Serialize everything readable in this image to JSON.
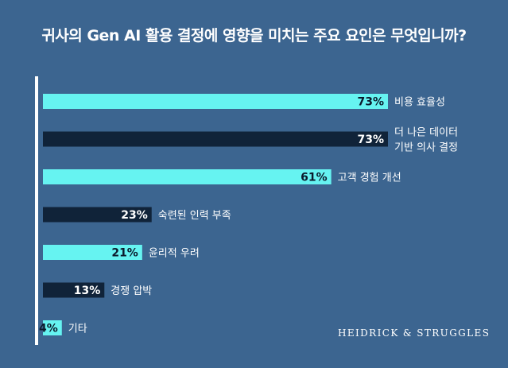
{
  "title": "귀사의 Gen AI 활용 결정에 영향을 미치는 주요 요인은 무엇입니까?",
  "brand": "HEIDRICK & STRUGGLES",
  "colors": {
    "background": "#3c6590",
    "light_bar": "#66f3f1",
    "dark_bar": "#102339",
    "axis": "#ffffff",
    "text": "#ffffff"
  },
  "chart_data": {
    "type": "bar",
    "orientation": "horizontal",
    "title": "귀사의 Gen AI 활용 결정에 영향을 미치는 주요 요인은 무엇입니까?",
    "xlim": [
      0,
      100
    ],
    "unit": "%",
    "bars": [
      {
        "label": [
          "비용 효율성"
        ],
        "value": 73,
        "value_label": "73%",
        "style": "light"
      },
      {
        "label": [
          "더 나은 데이터",
          "기반 의사 결정"
        ],
        "value": 73,
        "value_label": "73%",
        "style": "dark"
      },
      {
        "label": [
          "고객 경험 개선"
        ],
        "value": 61,
        "value_label": "61%",
        "style": "light"
      },
      {
        "label": [
          "숙련된 인력 부족"
        ],
        "value": 23,
        "value_label": "23%",
        "style": "dark"
      },
      {
        "label": [
          "윤리적 우려"
        ],
        "value": 21,
        "value_label": "21%",
        "style": "light"
      },
      {
        "label": [
          "경쟁 압박"
        ],
        "value": 13,
        "value_label": "13%",
        "style": "dark"
      },
      {
        "label": [
          "기타"
        ],
        "value": 4,
        "value_label": "4%",
        "style": "light"
      }
    ]
  }
}
